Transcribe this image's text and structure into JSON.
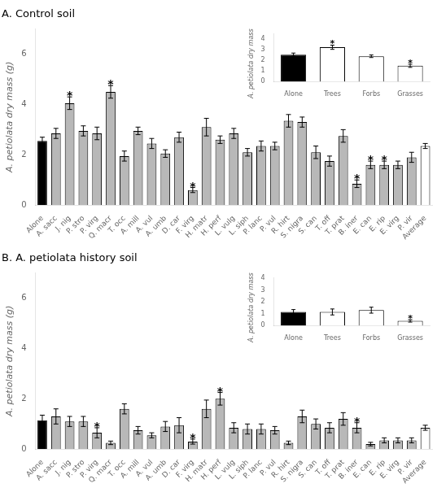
{
  "chart_data": [
    {
      "type": "bar",
      "title": "A. Control soil",
      "ylabel": "A. petiolata dry mass (g)",
      "categories": [
        "Alone",
        "A. sacc",
        "J. nig",
        "P. stro",
        "P. virg",
        "Q. macr",
        "T. occ",
        "A. mill",
        "A. vul",
        "A. umb",
        "D. car",
        "F. virg",
        "H. matr",
        "H. perf",
        "L. vulg",
        "L. siph",
        "P. lanc",
        "P. vul",
        "R. hirt",
        "S. nigra",
        "S. can",
        "T. off",
        "T. prat",
        "B. iner",
        "E. can",
        "E. rip",
        "E. virg",
        "P. vir",
        "Average"
      ],
      "values": [
        2.55,
        2.85,
        4.05,
        2.95,
        2.85,
        4.5,
        1.95,
        2.95,
        2.45,
        2.05,
        2.7,
        0.6,
        3.1,
        2.6,
        2.85,
        2.1,
        2.35,
        2.35,
        3.35,
        3.3,
        2.1,
        1.75,
        2.75,
        0.85,
        1.6,
        1.6,
        1.6,
        1.9,
        2.35
      ],
      "errors": [
        0.15,
        0.2,
        0.25,
        0.2,
        0.25,
        0.25,
        0.2,
        0.15,
        0.2,
        0.15,
        0.2,
        0.1,
        0.35,
        0.15,
        0.2,
        0.15,
        0.2,
        0.15,
        0.25,
        0.2,
        0.25,
        0.2,
        0.25,
        0.15,
        0.15,
        0.15,
        0.15,
        0.2,
        0.1
      ],
      "colors": [
        "black",
        "#b8b8b8",
        "#b8b8b8",
        "#b8b8b8",
        "#b8b8b8",
        "#b8b8b8",
        "#b8b8b8",
        "#b8b8b8",
        "#b8b8b8",
        "#b8b8b8",
        "#b8b8b8",
        "#b8b8b8",
        "#b8b8b8",
        "#b8b8b8",
        "#b8b8b8",
        "#b8b8b8",
        "#b8b8b8",
        "#b8b8b8",
        "#b8b8b8",
        "#b8b8b8",
        "#b8b8b8",
        "#b8b8b8",
        "#b8b8b8",
        "#b8b8b8",
        "#b8b8b8",
        "#b8b8b8",
        "#b8b8b8",
        "#b8b8b8",
        "white"
      ],
      "annotations": [
        {
          "x": "J. nig",
          "text": "*"
        },
        {
          "x": "Q. macr",
          "text": "*"
        },
        {
          "x": "F. virg",
          "text": "*"
        },
        {
          "x": "B. iner",
          "text": "*"
        },
        {
          "x": "E. can",
          "text": "*"
        },
        {
          "x": "E. rip",
          "text": "*"
        }
      ],
      "ylim": [
        0,
        7
      ],
      "yticks": [
        0,
        2,
        4,
        6
      ],
      "grid": false
    },
    {
      "type": "bar",
      "ylabel": "A. petiolata dry mass (g)",
      "categories": [
        "Alone",
        "Trees",
        "Forbs",
        "Grasses"
      ],
      "values": [
        2.55,
        3.25,
        2.4,
        1.5
      ],
      "errors": [
        0.15,
        0.2,
        0.12,
        0.15
      ],
      "colors": [
        "black",
        "white",
        "white",
        "white"
      ],
      "annotations": [
        {
          "x": "Trees",
          "text": "*"
        },
        {
          "x": "Grasses",
          "text": "*"
        }
      ],
      "ylim": [
        0,
        4.5
      ],
      "yticks": [
        0,
        1,
        2,
        3,
        4
      ],
      "grid": false
    },
    {
      "type": "bar",
      "title": "B. A. petiolata history soil",
      "ylabel": "A. petiolata dry mass (g)",
      "categories": [
        "Alone",
        "A. sacc",
        "J. nig",
        "P. stro",
        "P. virg",
        "Q. macr",
        "T. occ",
        "A. mill",
        "A. vul",
        "A. umb",
        "D. car",
        "F. virg",
        "H. matr",
        "H. perf",
        "L. vulg",
        "L. siph",
        "P. lanc",
        "P. vul",
        "R. hirt",
        "S. nigra",
        "S. can",
        "T. off",
        "T. prat",
        "B. iner",
        "E. can",
        "E. rip",
        "E. virg",
        "P. vir",
        "Average"
      ],
      "values": [
        1.15,
        1.3,
        1.1,
        1.1,
        0.65,
        0.25,
        1.6,
        0.75,
        0.55,
        0.9,
        0.95,
        0.3,
        1.6,
        2.0,
        0.85,
        0.8,
        0.8,
        0.75,
        0.25,
        1.3,
        1.0,
        0.85,
        1.2,
        0.85,
        0.2,
        0.35,
        0.35,
        0.35,
        0.85
      ],
      "errors": [
        0.2,
        0.3,
        0.2,
        0.2,
        0.2,
        0.07,
        0.2,
        0.15,
        0.1,
        0.2,
        0.3,
        0.1,
        0.35,
        0.25,
        0.2,
        0.2,
        0.2,
        0.15,
        0.07,
        0.25,
        0.2,
        0.2,
        0.25,
        0.2,
        0.07,
        0.1,
        0.1,
        0.1,
        0.1
      ],
      "colors": [
        "black",
        "#b8b8b8",
        "#b8b8b8",
        "#b8b8b8",
        "#b8b8b8",
        "#b8b8b8",
        "#b8b8b8",
        "#b8b8b8",
        "#b8b8b8",
        "#b8b8b8",
        "#b8b8b8",
        "#b8b8b8",
        "#b8b8b8",
        "#b8b8b8",
        "#b8b8b8",
        "#b8b8b8",
        "#b8b8b8",
        "#b8b8b8",
        "#b8b8b8",
        "#b8b8b8",
        "#b8b8b8",
        "#b8b8b8",
        "#b8b8b8",
        "#b8b8b8",
        "#b8b8b8",
        "#b8b8b8",
        "#b8b8b8",
        "#b8b8b8",
        "white"
      ],
      "annotations": [
        {
          "x": "P. virg",
          "text": "*"
        },
        {
          "x": "F. virg",
          "text": "*"
        },
        {
          "x": "H. perf",
          "text": "*"
        },
        {
          "x": "B. iner",
          "text": "*"
        }
      ],
      "ylim": [
        0,
        7
      ],
      "yticks": [
        0,
        2,
        4,
        6
      ],
      "grid": false
    },
    {
      "type": "bar",
      "ylabel": "A. petiolata dry mass (g)",
      "categories": [
        "Alone",
        "Trees",
        "Forbs",
        "Grasses"
      ],
      "values": [
        1.15,
        1.15,
        1.3,
        0.4
      ],
      "errors": [
        0.2,
        0.25,
        0.25,
        0.1
      ],
      "colors": [
        "black",
        "white",
        "white",
        "white"
      ],
      "annotations": [
        {
          "x": "Grasses",
          "text": "*"
        }
      ],
      "ylim": [
        0,
        4.0
      ],
      "yticks": [
        0,
        1,
        2,
        3,
        4
      ],
      "grid": false
    }
  ]
}
